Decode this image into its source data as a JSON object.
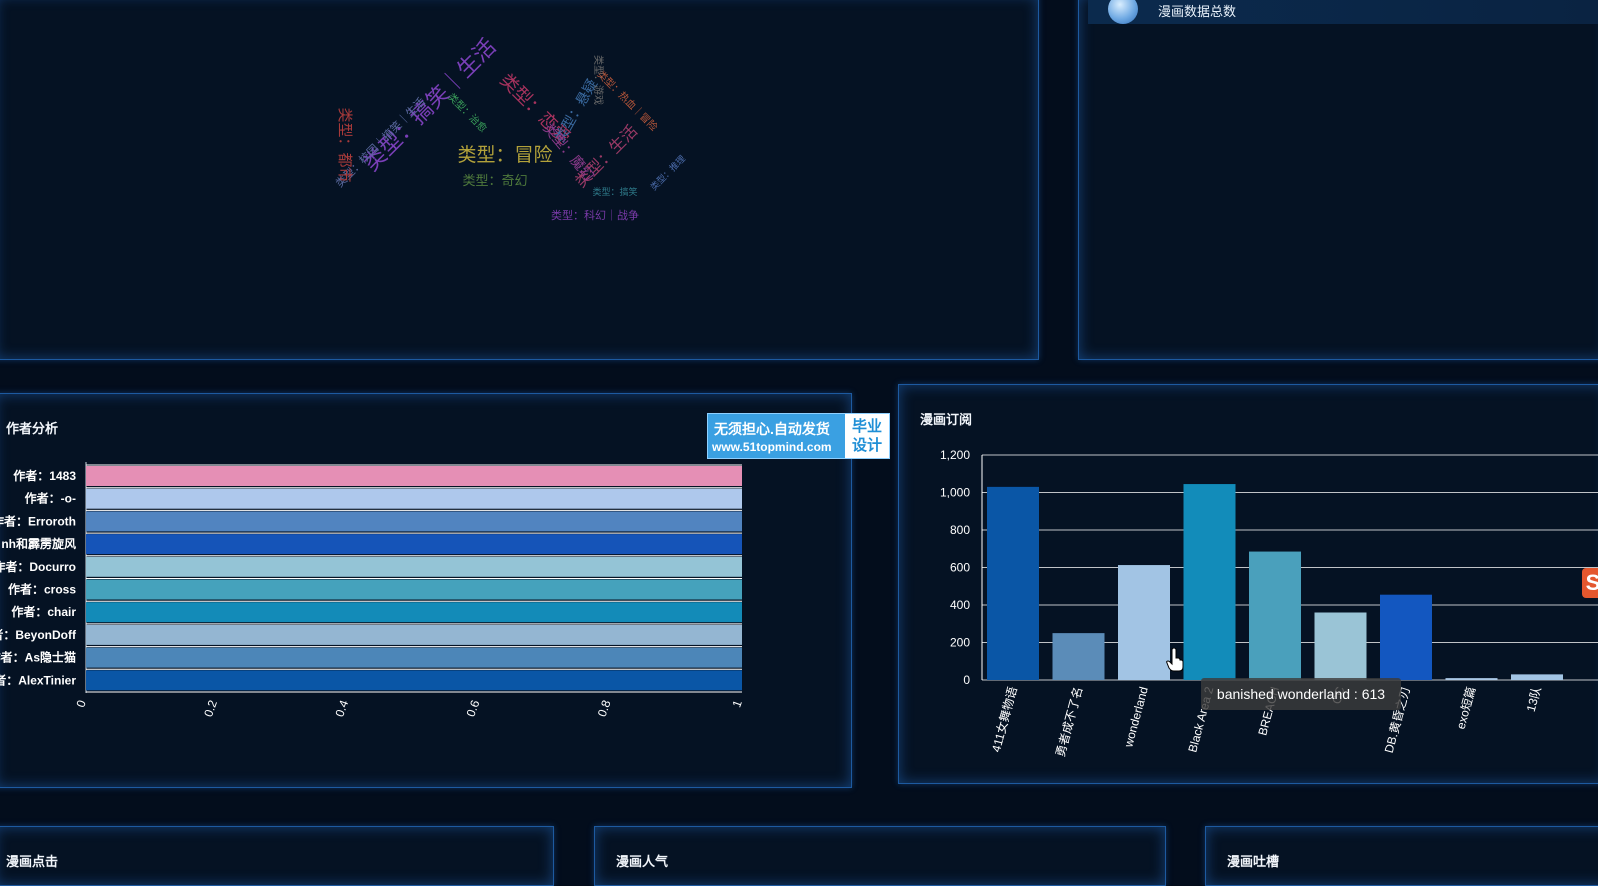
{
  "wordcloud": {
    "words": [
      {
        "text": "类型：冒险",
        "color": "#b2a13a"
      },
      {
        "text": "类型：搞笑｜生活",
        "color": "#7a3fb8"
      },
      {
        "text": "类型：恋爱",
        "color": "#a8335e"
      },
      {
        "text": "类型：生活",
        "color": "#9b3a66"
      },
      {
        "text": "类型：奇幻",
        "color": "#4f7a3c"
      },
      {
        "text": "类型：科幻｜战争",
        "color": "#7a3aa8"
      },
      {
        "text": "类型：校园｜搞笑｜生活",
        "color": "#5b6aa0"
      },
      {
        "text": "类型：热血｜冒险",
        "color": "#b8573a"
      },
      {
        "text": "类型：悬疑",
        "color": "#3a6aa0"
      },
      {
        "text": "类型：游戏",
        "color": "#6a6a6a"
      },
      {
        "text": "类型：治愈",
        "color": "#3aa05a"
      },
      {
        "text": "类型：搞笑",
        "color": "#2e7a8a"
      },
      {
        "text": "类型：都市",
        "color": "#a83a3a"
      },
      {
        "text": "类型：推理",
        "color": "#4a6aa8"
      },
      {
        "text": "类型：魔幻",
        "color": "#8a3a8a"
      }
    ]
  },
  "total_panel": {
    "label": "漫画数据总数"
  },
  "author_panel": {
    "title": "作者分析",
    "authors": [
      "作者：1483",
      "作者：-o-",
      "作者：Erroroth",
      "作者：nh和霹雳旋风",
      "作者：Docurro",
      "作者：cross",
      "作者：chair",
      "作者：BeyonDoff",
      "作者：As隐士猫",
      "作者：AlexTinier"
    ],
    "colors": [
      "#e58fb5",
      "#aec8ec",
      "#5184c0",
      "#1554b8",
      "#94c4d6",
      "#45a2bc",
      "#138bb8",
      "#94b6d2",
      "#4c86b8",
      "#0a56a6"
    ],
    "values": [
      1,
      1,
      1,
      1,
      1,
      1,
      1,
      1,
      1,
      1
    ],
    "ticks": [
      "0",
      "0.2",
      "0.4",
      "0.6",
      "0.8",
      "1"
    ],
    "xlim": [
      0,
      1
    ]
  },
  "watermark": {
    "line1": "无须担心.自动发货",
    "line2": "www.51topmind.com",
    "badge1": "毕业",
    "badge2": "设计"
  },
  "subscription_panel": {
    "title": "漫画订阅",
    "chart_data": {
      "type": "bar",
      "categories": [
        "411女舞物语",
        "勇者成不了名",
        "wonderland",
        "Black Area 2",
        "BREACH",
        "CC",
        "DB.黄昏之刃",
        "exo短篇",
        "13队"
      ],
      "values": [
        1030,
        250,
        613,
        1045,
        685,
        360,
        455,
        10,
        30
      ],
      "colors": [
        "#0a56a6",
        "#5b8cb8",
        "#a2c4e4",
        "#128cba",
        "#4aa0bc",
        "#9ac4d6",
        "#1357c0",
        "#aac8e6",
        "#a2c4e4"
      ],
      "ylim": [
        0,
        1200
      ],
      "yticks": [
        "0",
        "200",
        "400",
        "600",
        "800",
        "1,000",
        "1,200"
      ],
      "tooltip": "banished wonderland : 613"
    }
  },
  "bottom_panels": {
    "clicks": "漫画点击",
    "popularity": "漫画人气",
    "complaints": "漫画吐槽"
  }
}
